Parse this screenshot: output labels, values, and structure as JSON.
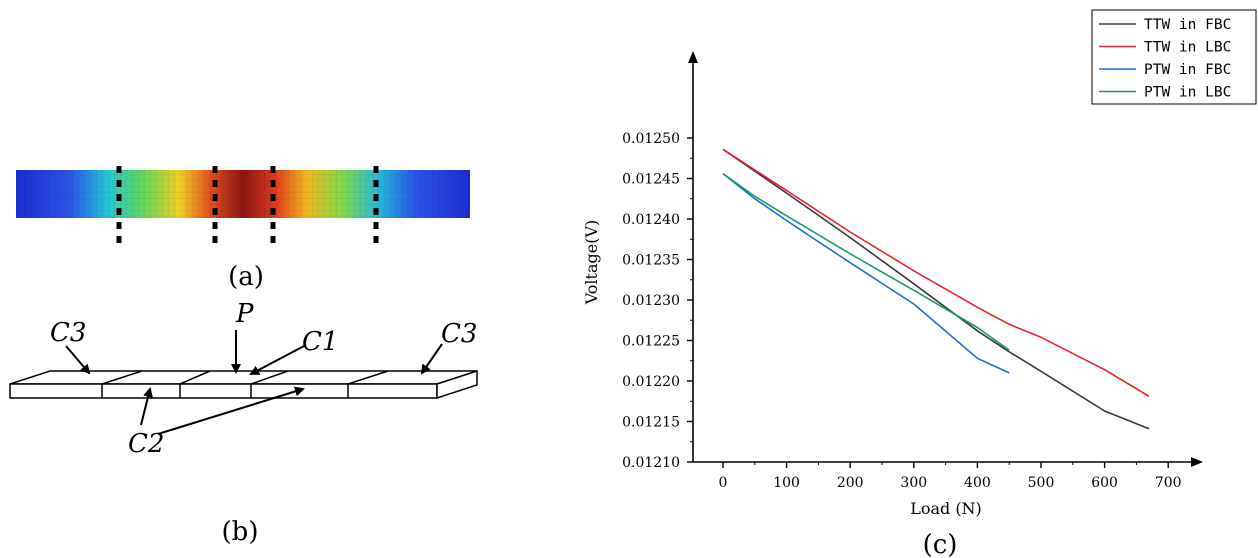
{
  "panels": {
    "a_label": "(a)",
    "b_label": "(b)",
    "c_label": "(c)"
  },
  "diagram": {
    "labels": {
      "c3_left": "C3",
      "c3_right": "C3",
      "p": "P",
      "c1": "C1",
      "c2": "C2"
    }
  },
  "contour": {
    "colormap": [
      "#1a2fd6",
      "#2a6cf2",
      "#21c6de",
      "#3fd66a",
      "#c8ec2a",
      "#f5b41e",
      "#e4341c",
      "#8a1410"
    ]
  },
  "chart_data": {
    "type": "line",
    "xlabel": "Load (N)",
    "ylabel": "Voltage(V)",
    "xlim": [
      -50,
      720
    ],
    "ylim": [
      0.0121,
      0.0125
    ],
    "xticks": [
      0,
      100,
      200,
      300,
      400,
      500,
      600,
      700
    ],
    "xtick_labels": [
      "0",
      "100",
      "200",
      "300",
      "400",
      "500",
      "600",
      "700"
    ],
    "yticks": [
      0.0121,
      0.01215,
      0.0122,
      0.01225,
      0.0123,
      0.01235,
      0.0124,
      0.01245,
      0.0125
    ],
    "ytick_labels": [
      "0.01210",
      "0.01215",
      "0.01220",
      "0.01225",
      "0.01230",
      "0.01235",
      "0.01240",
      "0.01245",
      "0.01250"
    ],
    "grid": false,
    "legend_position": "top-right",
    "series": [
      {
        "name": "TTW in FBC",
        "color": "#3a3a3a",
        "x": [
          0,
          100,
          200,
          300,
          400,
          450,
          500,
          600,
          670
        ],
        "y": [
          0.012486,
          0.012432,
          0.012377,
          0.01232,
          0.012262,
          0.012236,
          0.012212,
          0.012163,
          0.012141
        ]
      },
      {
        "name": "TTW in LBC",
        "color": "#e8232b",
        "x": [
          0,
          100,
          200,
          300,
          400,
          450,
          500,
          600,
          670
        ],
        "y": [
          0.012486,
          0.012435,
          0.012384,
          0.012336,
          0.012291,
          0.01227,
          0.012254,
          0.012214,
          0.012181
        ]
      },
      {
        "name": "PTW in FBC",
        "color": "#1d6fd6",
        "x": [
          0,
          50,
          100,
          200,
          300,
          400,
          450
        ],
        "y": [
          0.012456,
          0.012425,
          0.012398,
          0.012346,
          0.012295,
          0.012228,
          0.01221
        ]
      },
      {
        "name": "PTW in LBC",
        "color": "#1a9c6e",
        "x": [
          0,
          50,
          100,
          200,
          300,
          400,
          450
        ],
        "y": [
          0.012456,
          0.012428,
          0.012404,
          0.012357,
          0.012312,
          0.012266,
          0.012238
        ]
      }
    ]
  }
}
